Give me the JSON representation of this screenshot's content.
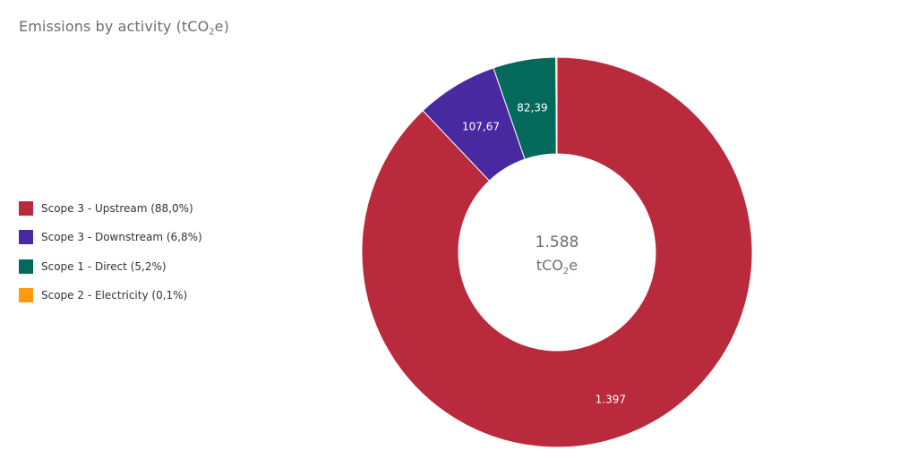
{
  "title": {
    "main": "Emissions by activity (tCO",
    "sub": "2",
    "suffix": "e)"
  },
  "center": {
    "value": "1.588",
    "unit_main": "tCO",
    "unit_sub": "2",
    "unit_suffix": "e"
  },
  "legend": [
    {
      "label": "Scope 3 - Upstream (88,0%)",
      "color": "#b92b3c"
    },
    {
      "label": "Scope 3 - Downstream (6,8%)",
      "color": "#4929a0"
    },
    {
      "label": "Scope 1 - Direct (5,2%)",
      "color": "#03695b"
    },
    {
      "label": "Scope 2 - Electricity (0,1%)",
      "color": "#ff9a0e"
    }
  ],
  "chart_data": {
    "type": "pie",
    "variant": "donut",
    "title": "Emissions by activity (tCO2e)",
    "categories": [
      "Scope 3 - Upstream",
      "Scope 3 - Downstream",
      "Scope 1 - Direct",
      "Scope 2 - Electricity"
    ],
    "values": [
      1397,
      107.67,
      82.39,
      1.5
    ],
    "percentages": [
      "88,0%",
      "6,8%",
      "5,2%",
      "0,1%"
    ],
    "data_labels": [
      "1.397",
      "107,67",
      "82,39",
      ""
    ],
    "colors": [
      "#b92b3c",
      "#4929a0",
      "#03695b",
      "#ff9a0e"
    ],
    "total_label": "1.588",
    "unit": "tCO2e",
    "legend_position": "left"
  }
}
